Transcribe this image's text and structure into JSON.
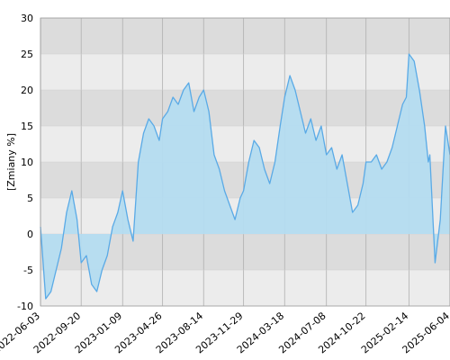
{
  "chart_data": {
    "type": "area",
    "ylabel": "[Zmiany %]",
    "xlabel": "",
    "title": "",
    "ylim": [
      -10,
      30
    ],
    "xlim": [
      "2022-06-03",
      "2025-06-04"
    ],
    "y_ticks": [
      30,
      25,
      20,
      15,
      10,
      5,
      0,
      -5,
      -10
    ],
    "x_ticks": [
      "2022-06-03",
      "2022-09-20",
      "2023-01-09",
      "2023-04-26",
      "2023-08-14",
      "2023-11-29",
      "2024-03-18",
      "2024-07-08",
      "2024-10-22",
      "2025-02-14",
      "2025-06-04"
    ],
    "grid": true,
    "colors": {
      "line": "#5aaae6",
      "fill": "#b4dcf0",
      "band_dark": "#dcdcdc",
      "band_light": "#ececec"
    },
    "series": [
      {
        "x": [
          "2022-06-03",
          "2022-06-17",
          "2022-07-01",
          "2022-07-15",
          "2022-07-29",
          "2022-08-12",
          "2022-08-26",
          "2022-09-09",
          "2022-09-20",
          "2022-10-04",
          "2022-10-18",
          "2022-11-01",
          "2022-11-15",
          "2022-11-29",
          "2022-12-13",
          "2022-12-27",
          "2023-01-09",
          "2023-01-23",
          "2023-02-06",
          "2023-02-20",
          "2023-03-06",
          "2023-03-20",
          "2023-04-03",
          "2023-04-17",
          "2023-04-26",
          "2023-05-10",
          "2023-05-24",
          "2023-06-07",
          "2023-06-21",
          "2023-07-05",
          "2023-07-19",
          "2023-08-02",
          "2023-08-14",
          "2023-08-28",
          "2023-09-11",
          "2023-09-25",
          "2023-10-09",
          "2023-10-23",
          "2023-11-06",
          "2023-11-20",
          "2023-11-29",
          "2023-12-13",
          "2023-12-27",
          "2024-01-10",
          "2024-01-24",
          "2024-02-07",
          "2024-02-21",
          "2024-03-06",
          "2024-03-18",
          "2024-04-01",
          "2024-04-15",
          "2024-04-29",
          "2024-05-13",
          "2024-05-27",
          "2024-06-10",
          "2024-06-24",
          "2024-07-08",
          "2024-07-22",
          "2024-08-05",
          "2024-08-19",
          "2024-09-02",
          "2024-09-16",
          "2024-09-30",
          "2024-10-14",
          "2024-10-22",
          "2024-11-05",
          "2024-11-19",
          "2024-12-03",
          "2024-12-17",
          "2024-12-31",
          "2025-01-14",
          "2025-01-28",
          "2025-02-07",
          "2025-02-14",
          "2025-02-28",
          "2025-03-14",
          "2025-03-28",
          "2025-04-07",
          "2025-04-11",
          "2025-04-25",
          "2025-05-09",
          "2025-05-23",
          "2025-06-04"
        ],
        "y": [
          1,
          -9,
          -8,
          -5,
          -2,
          3,
          6,
          2,
          -4,
          -3,
          -7,
          -8,
          -5,
          -3,
          1,
          3,
          6,
          2,
          -1,
          10,
          14,
          16,
          15,
          13,
          16,
          17,
          19,
          18,
          20,
          21,
          17,
          19,
          20,
          17,
          11,
          9,
          6,
          4,
          2,
          5,
          6,
          10,
          13,
          12,
          9,
          7,
          10,
          15,
          19,
          22,
          20,
          17,
          14,
          16,
          13,
          15,
          11,
          12,
          9,
          11,
          7,
          3,
          4,
          7,
          10,
          10,
          11,
          9,
          10,
          12,
          15,
          18,
          19,
          25,
          24,
          20,
          15,
          10,
          11,
          -4,
          2,
          15,
          11
        ]
      }
    ]
  }
}
